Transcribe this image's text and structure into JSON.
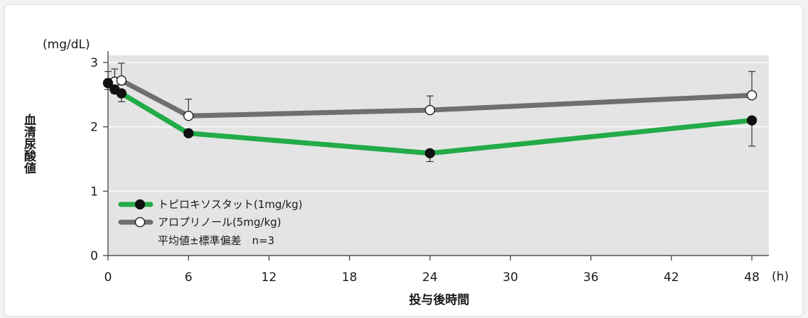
{
  "chart_data": {
    "type": "line",
    "y_unit": "(mg/dL)",
    "x_unit": "(h)",
    "xlabel": "投与後時間",
    "ylabel": "血清尿酸値",
    "xlim": [
      0,
      48
    ],
    "ylim": [
      0,
      3
    ],
    "x_ticks": [
      "0",
      "6",
      "12",
      "18",
      "24",
      "30",
      "36",
      "42",
      "48"
    ],
    "x_tick_values": [
      0,
      6,
      12,
      18,
      24,
      30,
      36,
      42,
      48
    ],
    "y_ticks": [
      "0",
      "1",
      "2",
      "3"
    ],
    "y_tick_values": [
      0,
      1,
      2,
      3
    ],
    "grid": "horizontal",
    "legend_position": "bottom-left",
    "legend_note": "平均値±標準偏差　n=3",
    "series": [
      {
        "name": "トピロキソスタット(1mg/kg)",
        "color": "#22ab47",
        "marker": "filled-circle",
        "x": [
          0,
          0.5,
          1,
          6,
          24,
          48
        ],
        "y": [
          2.68,
          2.58,
          2.52,
          1.9,
          1.59,
          2.1
        ],
        "sd": [
          0.1,
          0.06,
          0.13,
          0.05,
          0.13,
          0.4
        ]
      },
      {
        "name": "アロプリノール(5mg/kg)",
        "color": "#6f6f6f",
        "marker": "open-circle",
        "x": [
          0,
          0.5,
          1,
          6,
          24,
          48
        ],
        "y": [
          2.68,
          2.7,
          2.72,
          2.17,
          2.26,
          2.49
        ],
        "sd": [
          0.18,
          0.2,
          0.27,
          0.26,
          0.22,
          0.37
        ]
      }
    ]
  }
}
